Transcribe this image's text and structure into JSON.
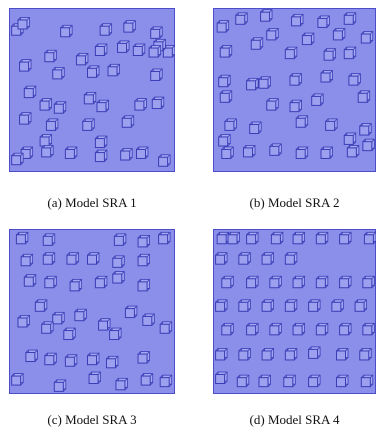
{
  "colors": {
    "fill": "#8c8fea",
    "fill_light": "#a4a7f2",
    "stroke": "#4b4ec8",
    "block_face": "#9da0ef",
    "block_edge": "#3a3db5"
  },
  "panels": [
    {
      "caption": "(a) Model SRA 1",
      "blocks": [
        [
          0.02,
          0.12
        ],
        [
          0.06,
          0.08
        ],
        [
          0.33,
          0.13
        ],
        [
          0.58,
          0.12
        ],
        [
          0.73,
          0.1
        ],
        [
          0.9,
          0.14
        ],
        [
          0.98,
          0.26
        ],
        [
          0.23,
          0.29
        ],
        [
          0.43,
          0.31
        ],
        [
          0.55,
          0.25
        ],
        [
          0.69,
          0.23
        ],
        [
          0.79,
          0.25
        ],
        [
          0.92,
          0.22
        ],
        [
          0.89,
          0.26
        ],
        [
          0.07,
          0.35
        ],
        [
          0.28,
          0.4
        ],
        [
          0.5,
          0.39
        ],
        [
          0.63,
          0.38
        ],
        [
          0.9,
          0.41
        ],
        [
          0.1,
          0.52
        ],
        [
          0.2,
          0.6
        ],
        [
          0.29,
          0.62
        ],
        [
          0.48,
          0.56
        ],
        [
          0.56,
          0.61
        ],
        [
          0.8,
          0.6
        ],
        [
          0.91,
          0.59
        ],
        [
          0.07,
          0.69
        ],
        [
          0.24,
          0.73
        ],
        [
          0.47,
          0.73
        ],
        [
          0.72,
          0.71
        ],
        [
          0.2,
          0.83
        ],
        [
          0.55,
          0.84
        ],
        [
          0.08,
          0.91
        ],
        [
          0.21,
          0.9
        ],
        [
          0.36,
          0.91
        ],
        [
          0.55,
          0.93
        ],
        [
          0.71,
          0.92
        ],
        [
          0.81,
          0.91
        ],
        [
          0.02,
          0.95
        ],
        [
          0.95,
          0.96
        ]
      ]
    },
    {
      "caption": "(b) Model SRA 2",
      "blocks": [
        [
          0.03,
          0.1
        ],
        [
          0.15,
          0.05
        ],
        [
          0.31,
          0.03
        ],
        [
          0.51,
          0.06
        ],
        [
          0.68,
          0.07
        ],
        [
          0.85,
          0.05
        ],
        [
          0.35,
          0.15
        ],
        [
          0.58,
          0.18
        ],
        [
          0.78,
          0.15
        ],
        [
          0.96,
          0.17
        ],
        [
          0.05,
          0.26
        ],
        [
          0.25,
          0.21
        ],
        [
          0.47,
          0.27
        ],
        [
          0.72,
          0.28
        ],
        [
          0.85,
          0.27
        ],
        [
          0.04,
          0.45
        ],
        [
          0.22,
          0.47
        ],
        [
          0.3,
          0.46
        ],
        [
          0.5,
          0.44
        ],
        [
          0.7,
          0.42
        ],
        [
          0.88,
          0.44
        ],
        [
          0.05,
          0.55
        ],
        [
          0.35,
          0.6
        ],
        [
          0.5,
          0.61
        ],
        [
          0.64,
          0.57
        ],
        [
          0.94,
          0.55
        ],
        [
          0.08,
          0.73
        ],
        [
          0.24,
          0.75
        ],
        [
          0.54,
          0.71
        ],
        [
          0.73,
          0.73
        ],
        [
          0.95,
          0.76
        ],
        [
          0.04,
          0.83
        ],
        [
          0.06,
          0.91
        ],
        [
          0.2,
          0.9
        ],
        [
          0.37,
          0.89
        ],
        [
          0.54,
          0.91
        ],
        [
          0.7,
          0.91
        ],
        [
          0.87,
          0.9
        ],
        [
          0.97,
          0.86
        ],
        [
          0.85,
          0.82
        ]
      ]
    },
    {
      "caption": "(c) Model SRA 3",
      "blocks": [
        [
          0.05,
          0.04
        ],
        [
          0.22,
          0.05
        ],
        [
          0.67,
          0.05
        ],
        [
          0.82,
          0.06
        ],
        [
          0.95,
          0.04
        ],
        [
          0.08,
          0.18
        ],
        [
          0.22,
          0.17
        ],
        [
          0.37,
          0.17
        ],
        [
          0.5,
          0.17
        ],
        [
          0.66,
          0.19
        ],
        [
          0.82,
          0.18
        ],
        [
          0.1,
          0.31
        ],
        [
          0.23,
          0.32
        ],
        [
          0.39,
          0.34
        ],
        [
          0.55,
          0.32
        ],
        [
          0.66,
          0.29
        ],
        [
          0.82,
          0.34
        ],
        [
          0.17,
          0.47
        ],
        [
          0.28,
          0.55
        ],
        [
          0.42,
          0.53
        ],
        [
          0.57,
          0.59
        ],
        [
          0.74,
          0.51
        ],
        [
          0.85,
          0.56
        ],
        [
          0.06,
          0.57
        ],
        [
          0.21,
          0.61
        ],
        [
          0.35,
          0.65
        ],
        [
          0.64,
          0.65
        ],
        [
          0.96,
          0.61
        ],
        [
          0.02,
          0.94
        ],
        [
          0.11,
          0.79
        ],
        [
          0.23,
          0.81
        ],
        [
          0.36,
          0.82
        ],
        [
          0.5,
          0.81
        ],
        [
          0.62,
          0.83
        ],
        [
          0.82,
          0.8
        ],
        [
          0.29,
          0.98
        ],
        [
          0.51,
          0.93
        ],
        [
          0.68,
          0.97
        ],
        [
          0.84,
          0.94
        ],
        [
          0.96,
          0.95
        ]
      ]
    },
    {
      "caption": "(d) Model SRA 4",
      "blocks": [
        [
          0.03,
          0.04
        ],
        [
          0.1,
          0.04
        ],
        [
          0.22,
          0.04
        ],
        [
          0.38,
          0.04
        ],
        [
          0.52,
          0.04
        ],
        [
          0.67,
          0.04
        ],
        [
          0.82,
          0.04
        ],
        [
          0.98,
          0.04
        ],
        [
          0.02,
          0.17
        ],
        [
          0.17,
          0.17
        ],
        [
          0.32,
          0.17
        ],
        [
          0.47,
          0.17
        ],
        [
          0.06,
          0.32
        ],
        [
          0.22,
          0.32
        ],
        [
          0.37,
          0.32
        ],
        [
          0.52,
          0.32
        ],
        [
          0.67,
          0.32
        ],
        [
          0.82,
          0.32
        ],
        [
          0.97,
          0.32
        ],
        [
          0.02,
          0.47
        ],
        [
          0.17,
          0.47
        ],
        [
          0.32,
          0.47
        ],
        [
          0.47,
          0.47
        ],
        [
          0.62,
          0.47
        ],
        [
          0.77,
          0.47
        ],
        [
          0.92,
          0.47
        ],
        [
          0.06,
          0.62
        ],
        [
          0.22,
          0.62
        ],
        [
          0.37,
          0.62
        ],
        [
          0.52,
          0.62
        ],
        [
          0.67,
          0.62
        ],
        [
          0.82,
          0.62
        ],
        [
          0.97,
          0.62
        ],
        [
          0.02,
          0.78
        ],
        [
          0.17,
          0.78
        ],
        [
          0.32,
          0.78
        ],
        [
          0.47,
          0.78
        ],
        [
          0.62,
          0.77
        ],
        [
          0.8,
          0.78
        ],
        [
          0.95,
          0.78
        ],
        [
          0.02,
          0.93
        ],
        [
          0.16,
          0.95
        ],
        [
          0.3,
          0.95
        ],
        [
          0.46,
          0.95
        ],
        [
          0.62,
          0.95
        ],
        [
          0.8,
          0.95
        ],
        [
          0.96,
          0.95
        ]
      ]
    }
  ]
}
